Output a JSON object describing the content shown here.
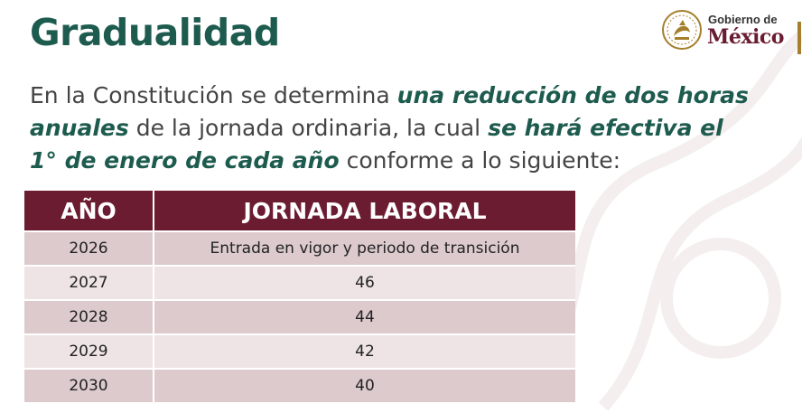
{
  "slide": {
    "title": "Gradualidad",
    "logo": {
      "line1": "Gobierno de",
      "line2": "México",
      "emblem_icon": "national-seal-icon"
    },
    "intro": {
      "part1": "En la Constitución se determina ",
      "highlight1": "una reducción de dos horas anuales",
      "part2": " de la jornada ordinaria, la cual ",
      "highlight2": "se hará efectiva el 1° de enero de cada año",
      "part3": " conforme a lo siguiente:"
    },
    "table": {
      "headers": [
        "AÑO",
        "JORNADA LABORAL"
      ],
      "rows": [
        [
          "2026",
          "Entrada en vigor y periodo de transición"
        ],
        [
          "2027",
          "46"
        ],
        [
          "2028",
          "44"
        ],
        [
          "2029",
          "42"
        ],
        [
          "2030",
          "40"
        ]
      ]
    }
  },
  "colors": {
    "title_green": "#1e5b4f",
    "header_maroon": "#6c1c31",
    "row_dark": "#dccacd",
    "row_light": "#eee4e6",
    "gold": "#a57f2c"
  }
}
